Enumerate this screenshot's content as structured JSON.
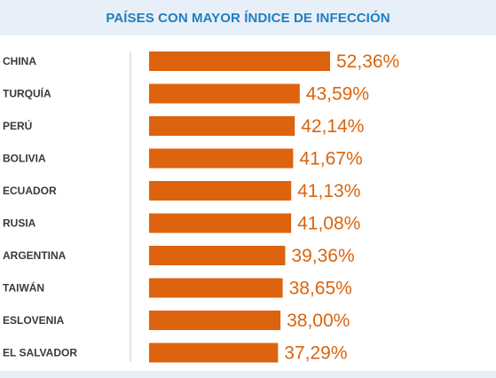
{
  "header": {
    "title": "PAÍSES CON MAYOR ÍNDICE DE INFECCIÓN"
  },
  "colors": {
    "bar": "#dd630e",
    "value_text": "#d9640f",
    "title": "#1e7fc0",
    "header_bg": "#e7eff8",
    "axis_line": "#bfc8d2",
    "category_text": "#3a3a3a"
  },
  "chart_data": {
    "type": "bar",
    "orientation": "horizontal",
    "title": "PAÍSES CON MAYOR ÍNDICE DE INFECCIÓN",
    "xlabel": "",
    "ylabel": "",
    "grid": false,
    "categories": [
      "CHINA",
      "TURQUÍA",
      "PERÚ",
      "BOLIVIA",
      "ECUADOR",
      "RUSIA",
      "ARGENTINA",
      "TAIWÁN",
      "ESLOVENIA",
      "EL SALVADOR"
    ],
    "values": [
      52.36,
      43.59,
      42.14,
      41.67,
      41.13,
      41.08,
      39.36,
      38.65,
      38.0,
      37.29
    ],
    "value_labels": [
      "52,36%",
      "43,59%",
      "42,14%",
      "41,67%",
      "41,13%",
      "41,08%",
      "39,36%",
      "38,65%",
      "38,00%",
      "37,29%"
    ],
    "xlim": [
      0,
      52.36
    ]
  }
}
